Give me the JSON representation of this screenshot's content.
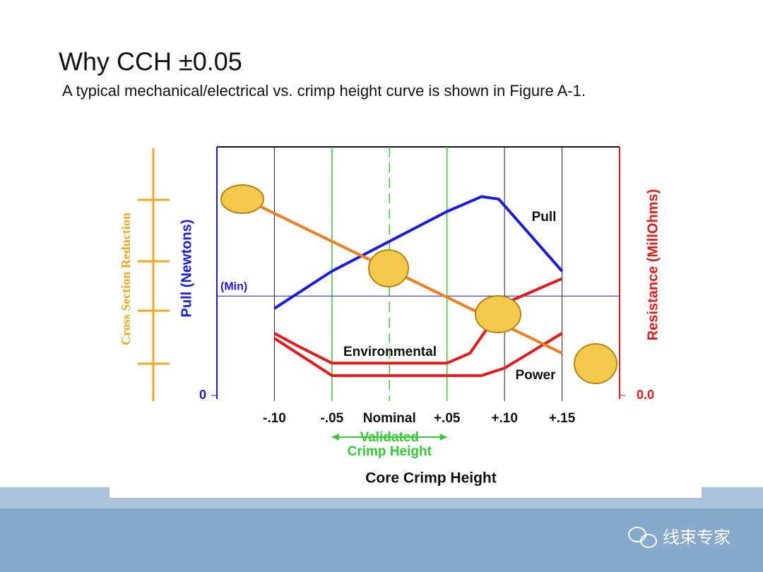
{
  "slide": {
    "title": "Why CCH ±0.05",
    "subtitle": "A typical mechanical/electrical vs. crimp height curve is shown in Figure A-1.",
    "watermark": "线束专家"
  },
  "chart_data": {
    "type": "line",
    "xlabel": "Core Crimp Height",
    "ylabel": "Pull (Newtons)",
    "y2label": "Resistance (MillOhms)",
    "xlim": [
      -0.15,
      0.2
    ],
    "xticks": [
      {
        "value": -0.1,
        "label": "-.10"
      },
      {
        "value": -0.05,
        "label": "-.05"
      },
      {
        "value": 0,
        "label": "Nominal"
      },
      {
        "value": 0.05,
        "label": "+.05"
      },
      {
        "value": 0.1,
        "label": "+.10"
      },
      {
        "value": 0.15,
        "label": "+.15"
      }
    ],
    "ylim": [
      0,
      100
    ],
    "yticks": [
      0
    ],
    "y2lim": [
      0,
      100
    ],
    "y2ticks": [
      {
        "value": 0,
        "label": "0.0"
      }
    ],
    "min_line": {
      "text": "(Min)",
      "value": 40
    },
    "validated": {
      "lines": [
        "Validated",
        "Crimp Height"
      ],
      "x": [
        -0.05,
        0.05
      ]
    },
    "series": [
      {
        "name": "Pull",
        "color": "#1a1ae6",
        "axis": "y",
        "x": [
          -0.1,
          -0.05,
          0,
          0.05,
          0.08,
          0.095,
          0.15
        ],
        "values": [
          35,
          50,
          62,
          74,
          80,
          79,
          50
        ]
      },
      {
        "name": "Environmental",
        "color": "#e61a1a",
        "axis": "y2",
        "x": [
          -0.1,
          -0.08,
          -0.05,
          0.05,
          0.07,
          0.1,
          0.15
        ],
        "values": [
          25,
          20,
          13,
          13,
          17,
          37,
          47
        ]
      },
      {
        "name": "Power",
        "color": "#e61a1a",
        "axis": "y2",
        "x": [
          -0.1,
          -0.07,
          -0.05,
          0.08,
          0.1,
          0.15
        ],
        "values": [
          23,
          14,
          8,
          8,
          11,
          25
        ]
      },
      {
        "name": "Cross Section Reduction",
        "color": "#f07d1e",
        "axis": "y",
        "x": [
          -0.13,
          0.15
        ],
        "values": [
          80,
          17
        ]
      }
    ]
  }
}
